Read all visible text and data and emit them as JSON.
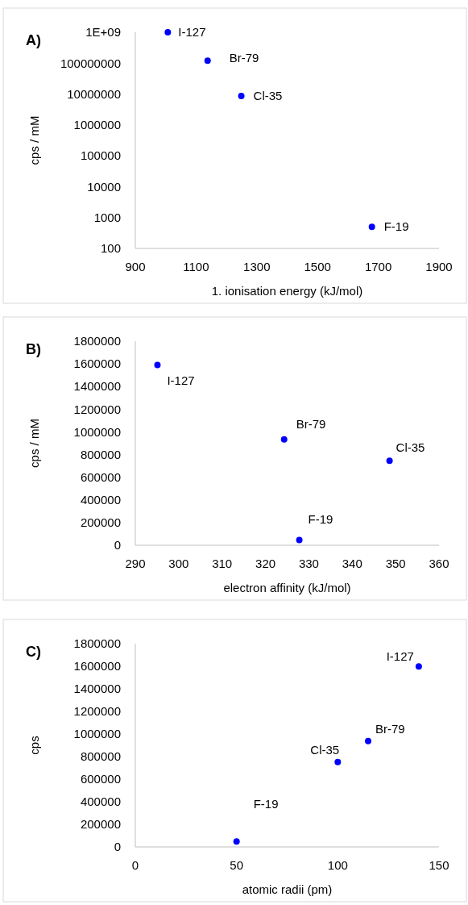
{
  "chart_data": [
    {
      "type": "scatter",
      "title": "A)",
      "xlabel": "1. ionisation energy (kJ/mol)",
      "ylabel": "cps / mM",
      "log": "y",
      "marker": "circle",
      "grid": false,
      "series": [
        {
          "color": "#0000ff",
          "x": [
            1007,
            1138,
            1249,
            1679
          ],
          "values": [
            1000000000,
            120000000,
            8700000,
            500
          ]
        }
      ],
      "xlim": [
        900,
        1900
      ],
      "xticks": [
        900,
        1100,
        1300,
        1500,
        1700,
        1900
      ],
      "ylim": [
        100,
        1000000000
      ],
      "yticks": [
        100,
        1000,
        10000,
        100000,
        1000000,
        10000000,
        100000000,
        {
          "value": 1000000000,
          "label": "1E+09"
        }
      ],
      "annotations": [
        {
          "text": "I-127",
          "x": 1007,
          "y": 1000000000
        },
        {
          "text": "Br-79",
          "x": 1138,
          "y": 120000000
        },
        {
          "text": "Cl-35",
          "x": 1249,
          "y": 8700000
        },
        {
          "text": "F-19",
          "x": 1679,
          "y": 500
        }
      ]
    },
    {
      "type": "scatter",
      "title": "B)",
      "xlabel": "electron affinity (kJ/mol)",
      "ylabel": "cps / mM",
      "marker": "circle",
      "grid": false,
      "series": [
        {
          "color": "#0000ff",
          "x": [
            295.1,
            324.3,
            348.6,
            327.8
          ],
          "values": [
            1590000,
            933000,
            745000,
            47000
          ]
        }
      ],
      "xlim": [
        290,
        360
      ],
      "xticks": [
        290,
        300,
        310,
        320,
        330,
        340,
        350,
        360
      ],
      "ylim": [
        0,
        1800000
      ],
      "yticks": [
        0,
        200000,
        400000,
        600000,
        800000,
        1000000,
        1200000,
        1400000,
        1600000,
        1800000
      ],
      "annotations": [
        {
          "text": "I-127",
          "x": 295.1,
          "y": 1590000
        },
        {
          "text": "Br-79",
          "x": 324.3,
          "y": 933000
        },
        {
          "text": "Cl-35",
          "x": 348.6,
          "y": 745000
        },
        {
          "text": "F-19",
          "x": 327.8,
          "y": 47000
        }
      ]
    },
    {
      "type": "scatter",
      "title": "C)",
      "xlabel": "atomic radii (pm)",
      "ylabel": "cps",
      "marker": "circle",
      "grid": false,
      "series": [
        {
          "color": "#0000ff",
          "x": [
            140,
            115,
            100,
            50
          ],
          "values": [
            1599000,
            937000,
            751000,
            49000
          ]
        }
      ],
      "xlim": [
        0,
        150
      ],
      "xticks": [
        0,
        50,
        100,
        150
      ],
      "ylim": [
        0,
        1800000
      ],
      "yticks": [
        0,
        200000,
        400000,
        600000,
        800000,
        1000000,
        1200000,
        1400000,
        1600000,
        1800000
      ],
      "annotations": [
        {
          "text": "I-127",
          "x": 140,
          "y": 1599000
        },
        {
          "text": "Br-79",
          "x": 115,
          "y": 937000
        },
        {
          "text": "Cl-35",
          "x": 100,
          "y": 751000
        },
        {
          "text": "F-19",
          "x": 50,
          "y": 49000
        }
      ]
    }
  ]
}
